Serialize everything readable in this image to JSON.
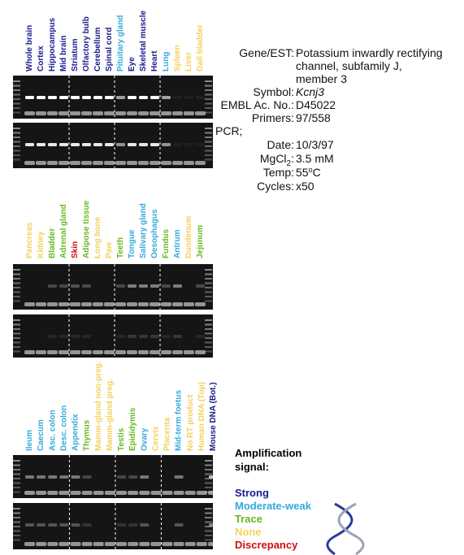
{
  "panels": [
    {
      "lanes": [
        {
          "label": "Whole brain",
          "color": "#1a1a8c"
        },
        {
          "label": "Cortex",
          "color": "#1a1a8c"
        },
        {
          "label": "Hippocampus",
          "color": "#1a1a8c"
        },
        {
          "label": "Mid brain",
          "color": "#1a1a8c"
        },
        {
          "label": "Striatum",
          "color": "#1a1a8c"
        },
        {
          "label": "Olfactory bulb",
          "color": "#1a1a8c"
        },
        {
          "label": "Cerebellum",
          "color": "#1a1a8c"
        },
        {
          "label": "Spinal cord",
          "color": "#1a1a8c"
        },
        {
          "label": "Pituitary gland",
          "color": "#33aadd"
        },
        {
          "label": "Eye",
          "color": "#1a1a8c"
        },
        {
          "label": "Skeletal muscle",
          "color": "#1a1a8c"
        },
        {
          "label": "Heart",
          "color": "#1a1a8c"
        },
        {
          "label": "Lung",
          "color": "#33aadd"
        },
        {
          "label": "Spleen",
          "color": "#f2d25a"
        },
        {
          "label": "Liver",
          "color": "#f2d25a"
        },
        {
          "label": "Gall bladder",
          "color": "#f2d25a"
        }
      ]
    },
    {
      "lanes": [
        {
          "label": "Pancreas",
          "color": "#f2d25a"
        },
        {
          "label": "Kidney",
          "color": "#f2d25a"
        },
        {
          "label": "Bladder",
          "color": "#66b822"
        },
        {
          "label": "Adrenal gland",
          "color": "#66b822"
        },
        {
          "label": "Skin",
          "color": "#cc1111"
        },
        {
          "label": "Adipose tissue",
          "color": "#66b822"
        },
        {
          "label": "Long bone",
          "color": "#f2d25a"
        },
        {
          "label": "Paw",
          "color": "#f2d25a"
        },
        {
          "label": "Teeth",
          "color": "#66b822"
        },
        {
          "label": "Tongue",
          "color": "#33aadd"
        },
        {
          "label": "Salivary gland",
          "color": "#33aadd"
        },
        {
          "label": "Oesophagus",
          "color": "#33aadd"
        },
        {
          "label": "Fundus",
          "color": "#66b822"
        },
        {
          "label": "Antrum",
          "color": "#33aadd"
        },
        {
          "label": "Duodenum",
          "color": "#f2d25a"
        },
        {
          "label": "Jejunum",
          "color": "#66b822"
        }
      ]
    },
    {
      "lanes": [
        {
          "label": "Ileum",
          "color": "#33aadd"
        },
        {
          "label": "Caecum",
          "color": "#33aadd"
        },
        {
          "label": "Asc. colon",
          "color": "#33aadd"
        },
        {
          "label": "Desc. colon",
          "color": "#33aadd"
        },
        {
          "label": "Appendix",
          "color": "#33aadd"
        },
        {
          "label": "Thymus",
          "color": "#66b822"
        },
        {
          "label": "Mamm-gland non-preg.",
          "color": "#f2d25a"
        },
        {
          "label": "Mamm-gland preg.",
          "color": "#f2d25a"
        },
        {
          "label": "Testis",
          "color": "#66b822"
        },
        {
          "label": "Epididymis",
          "color": "#66b822"
        },
        {
          "label": "Ovary",
          "color": "#33aadd"
        },
        {
          "label": "Cervix",
          "color": "#f2d25a"
        },
        {
          "label": "Placenta",
          "color": "#f2d25a"
        },
        {
          "label": "Mid-term foetus",
          "color": "#33aadd"
        },
        {
          "label": "No RT product",
          "color": "#f2d25a"
        },
        {
          "label": "Human DNA (Top)",
          "color": "#f2d25a"
        },
        {
          "label": "Mouse DNA (Bot.)",
          "color": "#1a1a8c"
        }
      ]
    }
  ],
  "info": {
    "gene_label": "Gene/EST:",
    "gene_lines": [
      "Potassium inwardly rectifying",
      "channel, subfamily J,",
      "member 3"
    ],
    "symbol_label": "Symbol:",
    "symbol": "Kcnj3",
    "embl_label": "EMBL Ac. No.:",
    "embl": "D45022",
    "primers_label": "Primers:",
    "primers": "97/558",
    "pcr_label": "PCR;",
    "date_label": "Date:",
    "date": "10/3/97",
    "mgcl_label": "MgCl",
    "mgcl_sub": "2",
    "mgcl_colon": ":",
    "mgcl": "3.5 mM",
    "temp_label": "Temp:",
    "temp": "55",
    "temp_sup": "o",
    "temp_unit": "C",
    "cycles_label": "Cycles:",
    "cycles": "x50"
  },
  "legend": {
    "title_lines": [
      "Amplification",
      "signal:"
    ],
    "items": [
      {
        "label": "Strong",
        "color": "#1a1a8c"
      },
      {
        "label": "Moderate-weak",
        "color": "#33aadd"
      },
      {
        "label": "Trace",
        "color": "#66b822"
      },
      {
        "label": "None",
        "color": "#f2d25a"
      },
      {
        "label": "Discrepancy",
        "color": "#cc1111"
      }
    ]
  }
}
